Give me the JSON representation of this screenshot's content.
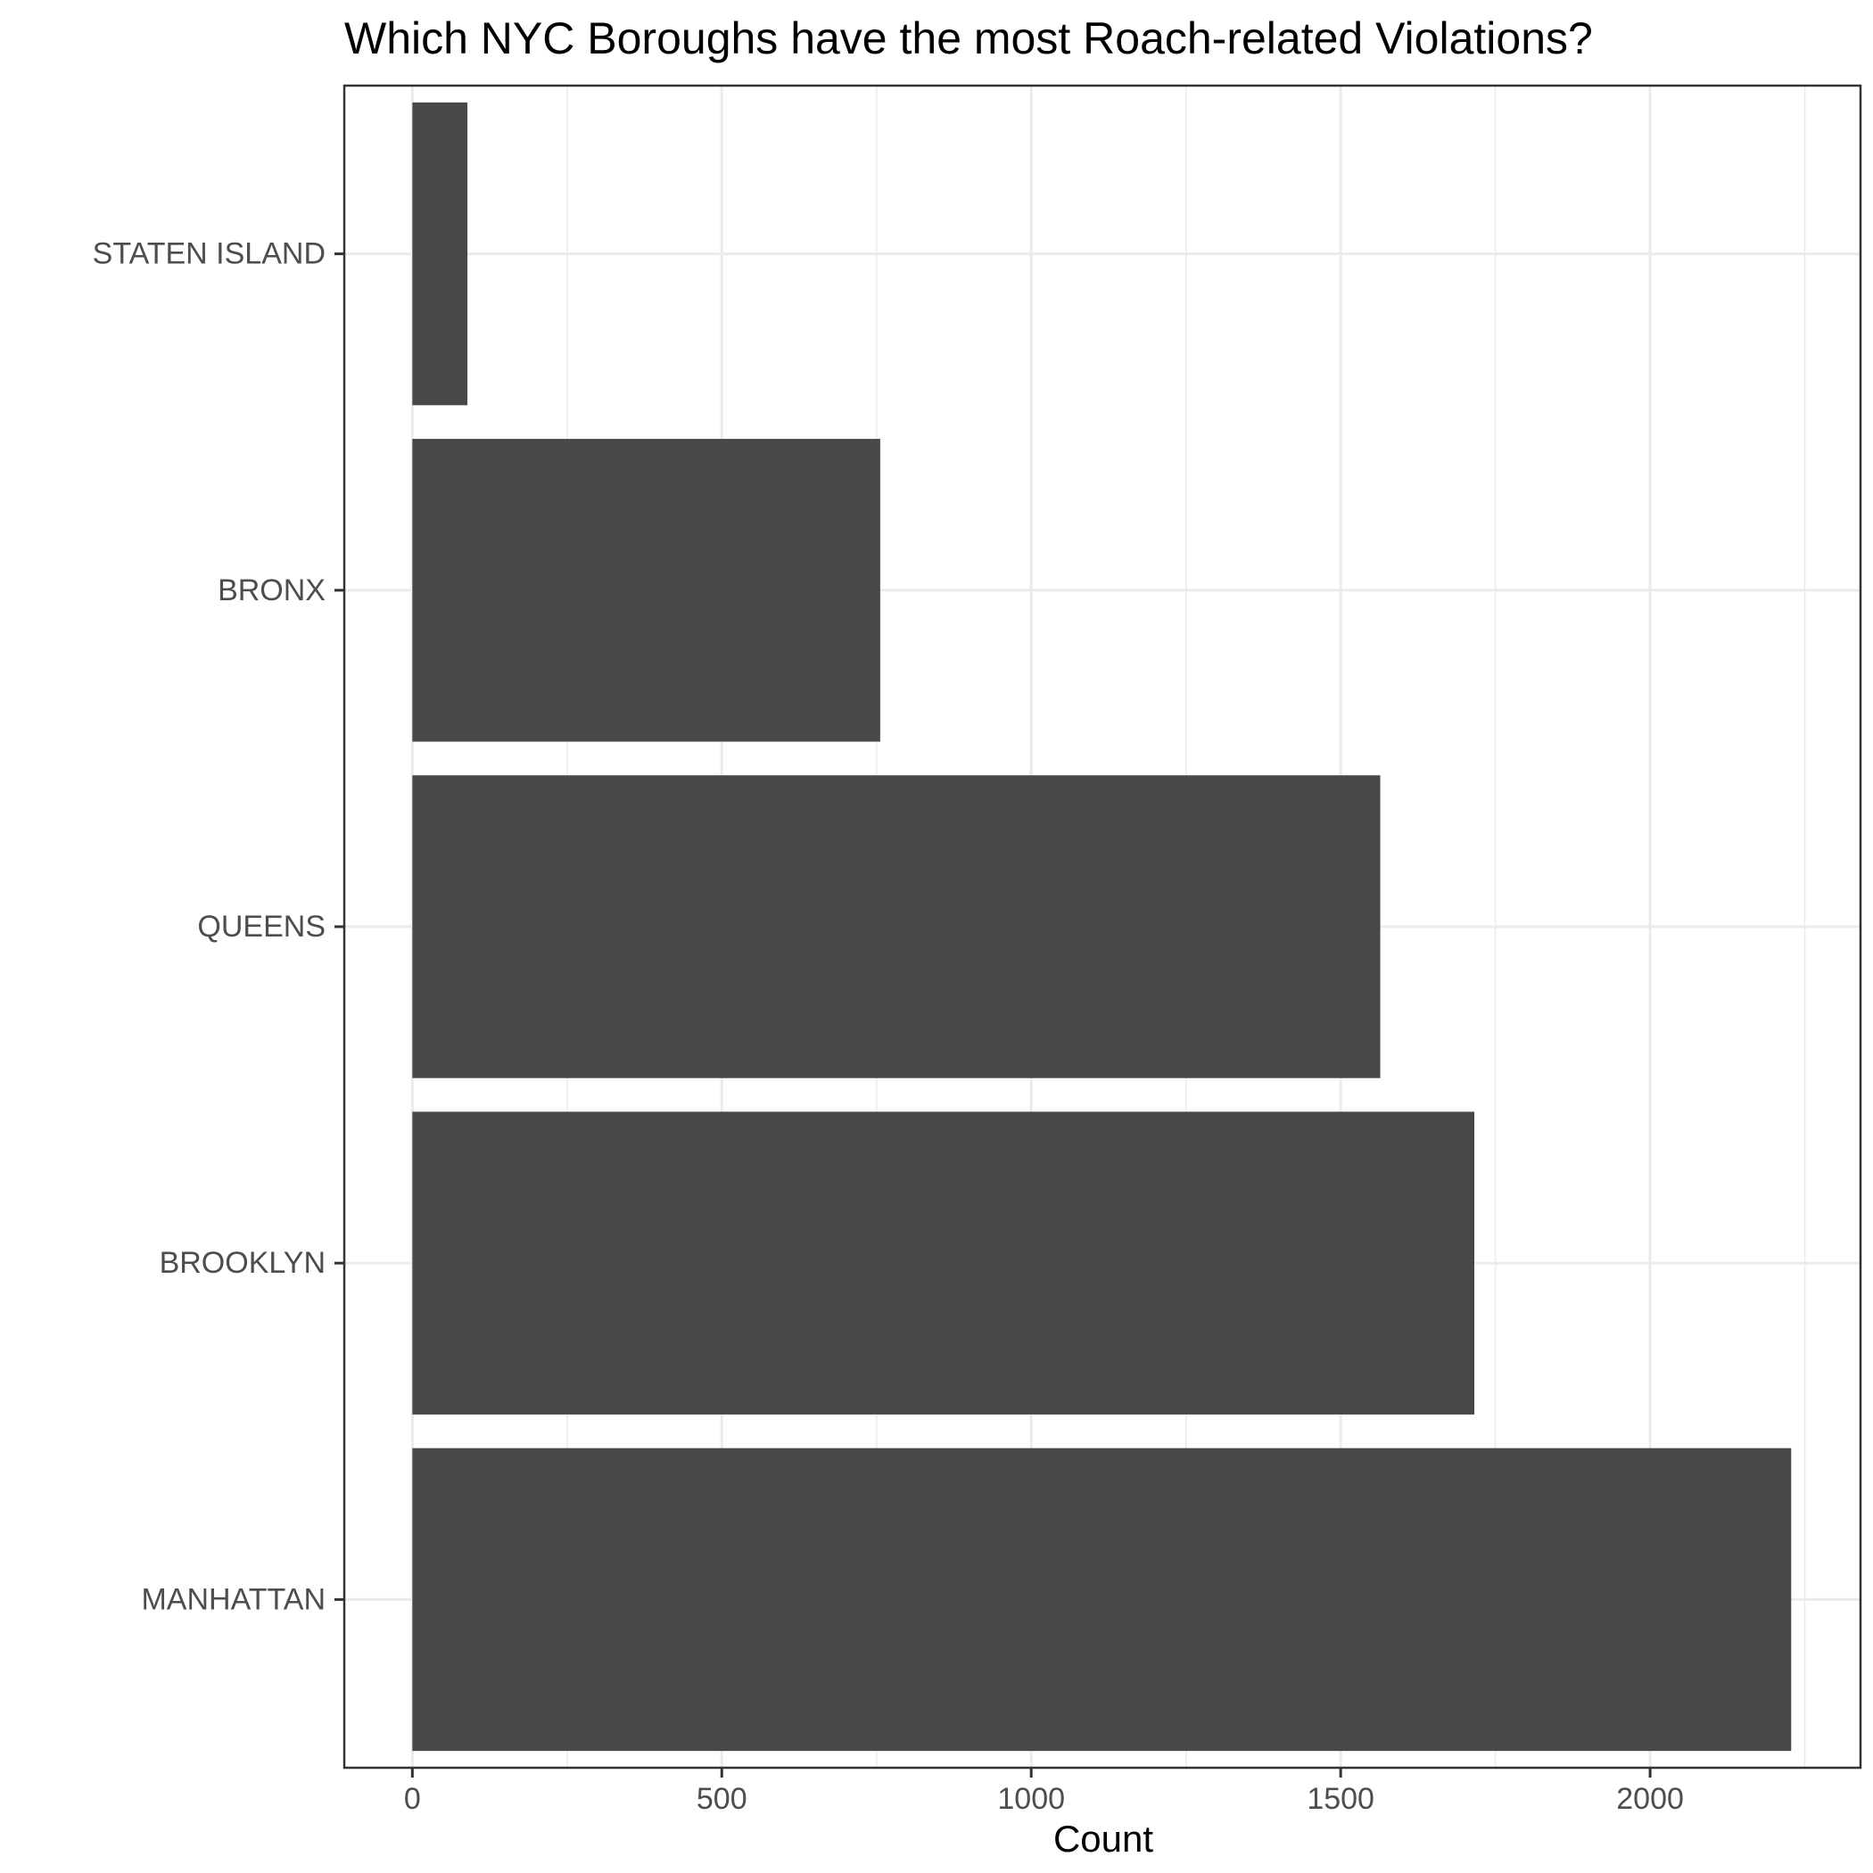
{
  "chart_data": {
    "type": "bar",
    "orientation": "horizontal",
    "title": "Which NYC Boroughs have the most Roach-related Violations?",
    "xlabel": "Count",
    "ylabel": "",
    "categories": [
      "MANHATTAN",
      "BROOKLYN",
      "QUEENS",
      "BRONX",
      "STATEN ISLAND"
    ],
    "values": [
      2228,
      1716,
      1564,
      756,
      89
    ],
    "xlim": [
      -110,
      2340
    ],
    "xticks": [
      0,
      500,
      1000,
      1500,
      2000
    ],
    "xtick_labels": [
      "0",
      "500",
      "1000",
      "1500",
      "2000"
    ],
    "grid": true,
    "bar_color": "#484848",
    "grid_color": "#ebebeb",
    "panel_border_color": "#333333"
  }
}
